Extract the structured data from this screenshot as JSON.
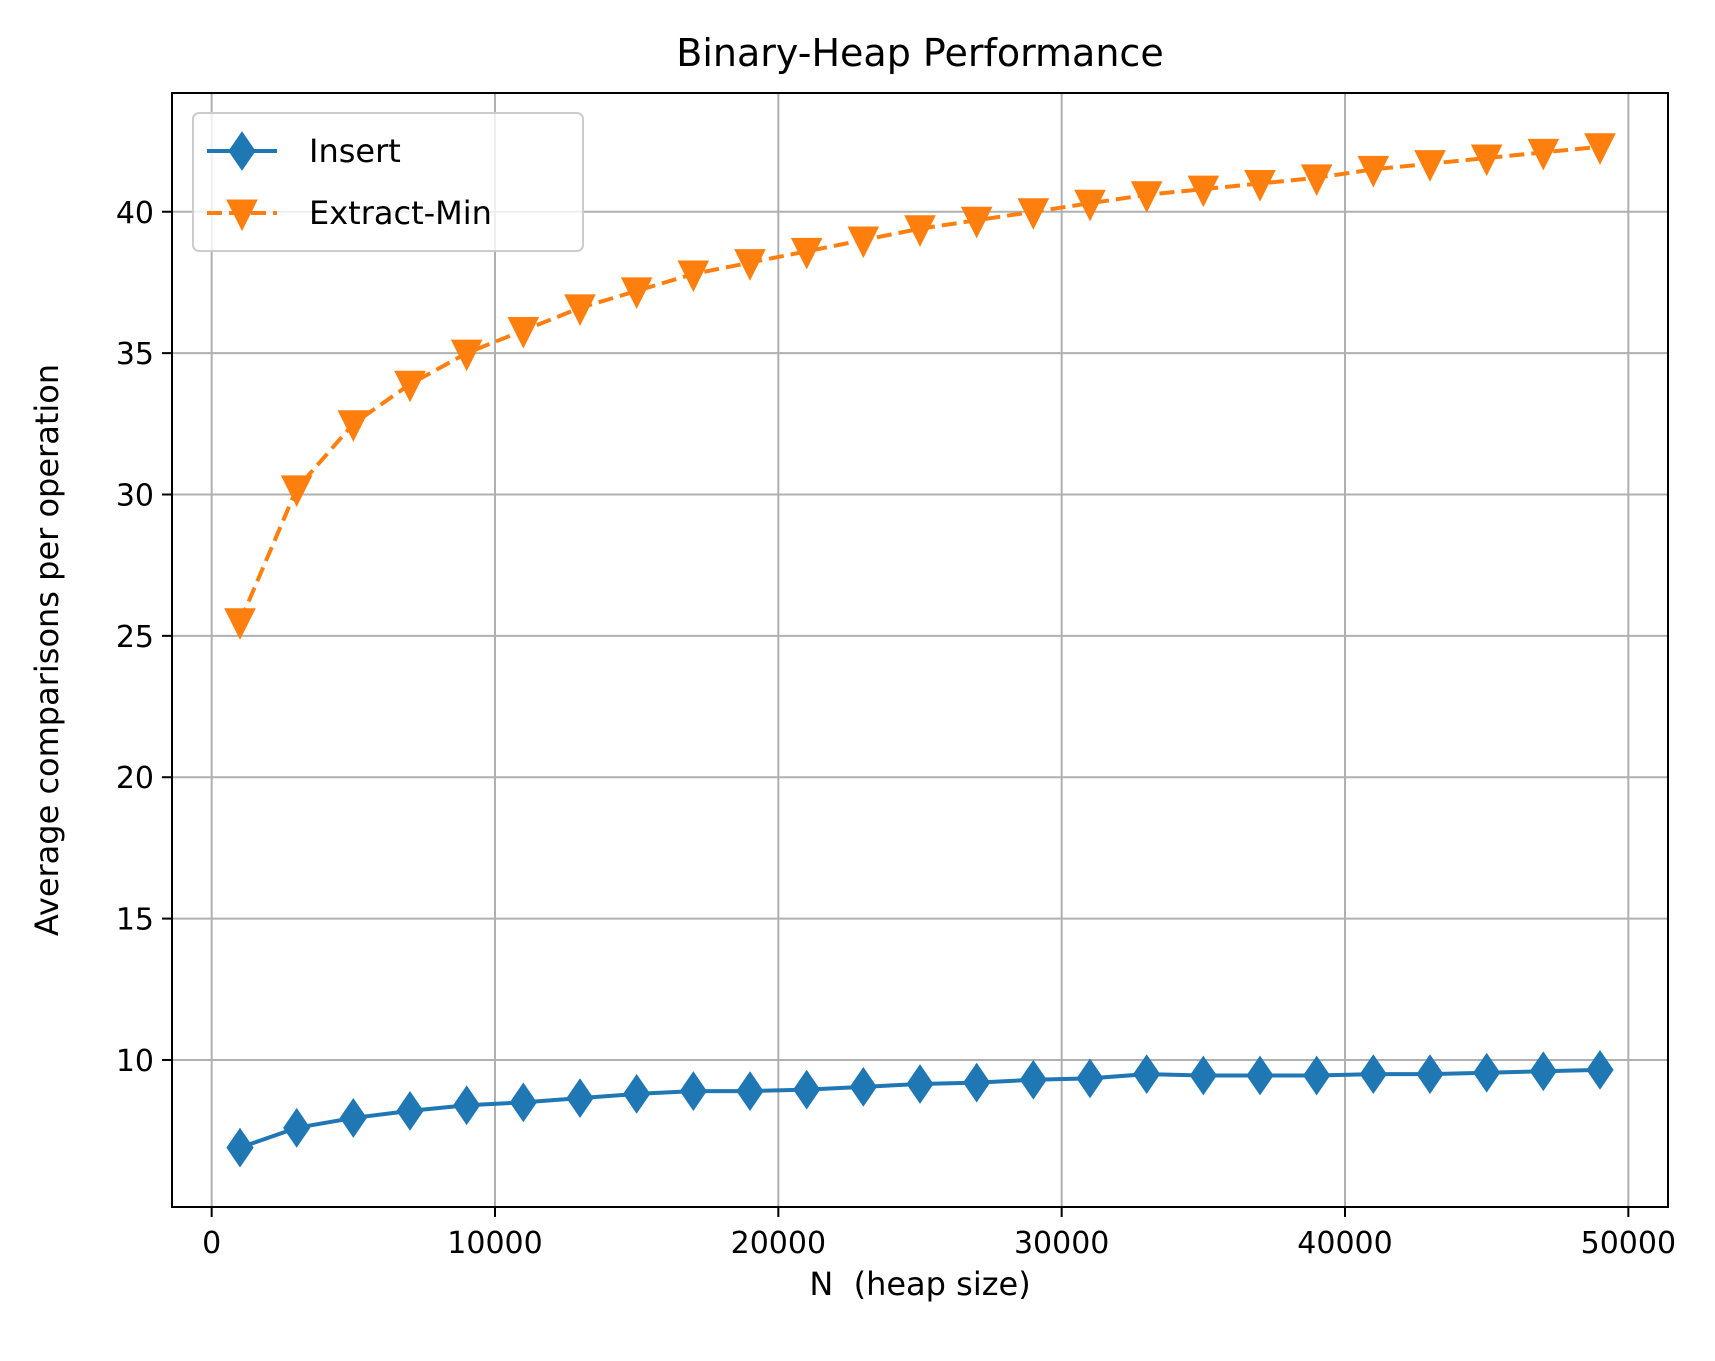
{
  "chart_data": {
    "type": "line",
    "title": "Binary-Heap Performance",
    "xlabel": "N  (heap size)",
    "ylabel": "Average comparisons per operation",
    "xlim": [
      -1400,
      51400
    ],
    "ylim": [
      4.8,
      44.2
    ],
    "xticks": [
      0,
      10000,
      20000,
      30000,
      40000,
      50000
    ],
    "xtick_labels": [
      "0",
      "10000",
      "20000",
      "30000",
      "40000",
      "50000"
    ],
    "yticks": [
      10,
      15,
      20,
      25,
      30,
      35,
      40
    ],
    "ytick_labels": [
      "10",
      "15",
      "20",
      "25",
      "30",
      "35",
      "40"
    ],
    "grid": true,
    "legend_position": "upper-left",
    "x": [
      1000,
      3000,
      5000,
      7000,
      9000,
      11000,
      13000,
      15000,
      17000,
      19000,
      21000,
      23000,
      25000,
      27000,
      29000,
      31000,
      33000,
      35000,
      37000,
      39000,
      41000,
      43000,
      45000,
      47000,
      49000
    ],
    "series": [
      {
        "name": "Insert",
        "color": "#1f77b4",
        "line_style": "solid",
        "marker": "diamond",
        "values": [
          6.9,
          7.6,
          7.95,
          8.2,
          8.4,
          8.5,
          8.65,
          8.8,
          8.9,
          8.9,
          8.95,
          9.05,
          9.15,
          9.2,
          9.3,
          9.35,
          9.5,
          9.45,
          9.45,
          9.45,
          9.5,
          9.5,
          9.55,
          9.6,
          9.65
        ]
      },
      {
        "name": "Extract-Min",
        "color": "#ff7f0e",
        "line_style": "dashed",
        "marker": "triangle-down",
        "values": [
          25.5,
          30.2,
          32.5,
          33.9,
          35.0,
          35.8,
          36.6,
          37.2,
          37.8,
          38.2,
          38.6,
          39.0,
          39.4,
          39.7,
          40.0,
          40.3,
          40.6,
          40.8,
          41.0,
          41.2,
          41.5,
          41.7,
          41.9,
          42.1,
          42.3
        ]
      }
    ]
  }
}
